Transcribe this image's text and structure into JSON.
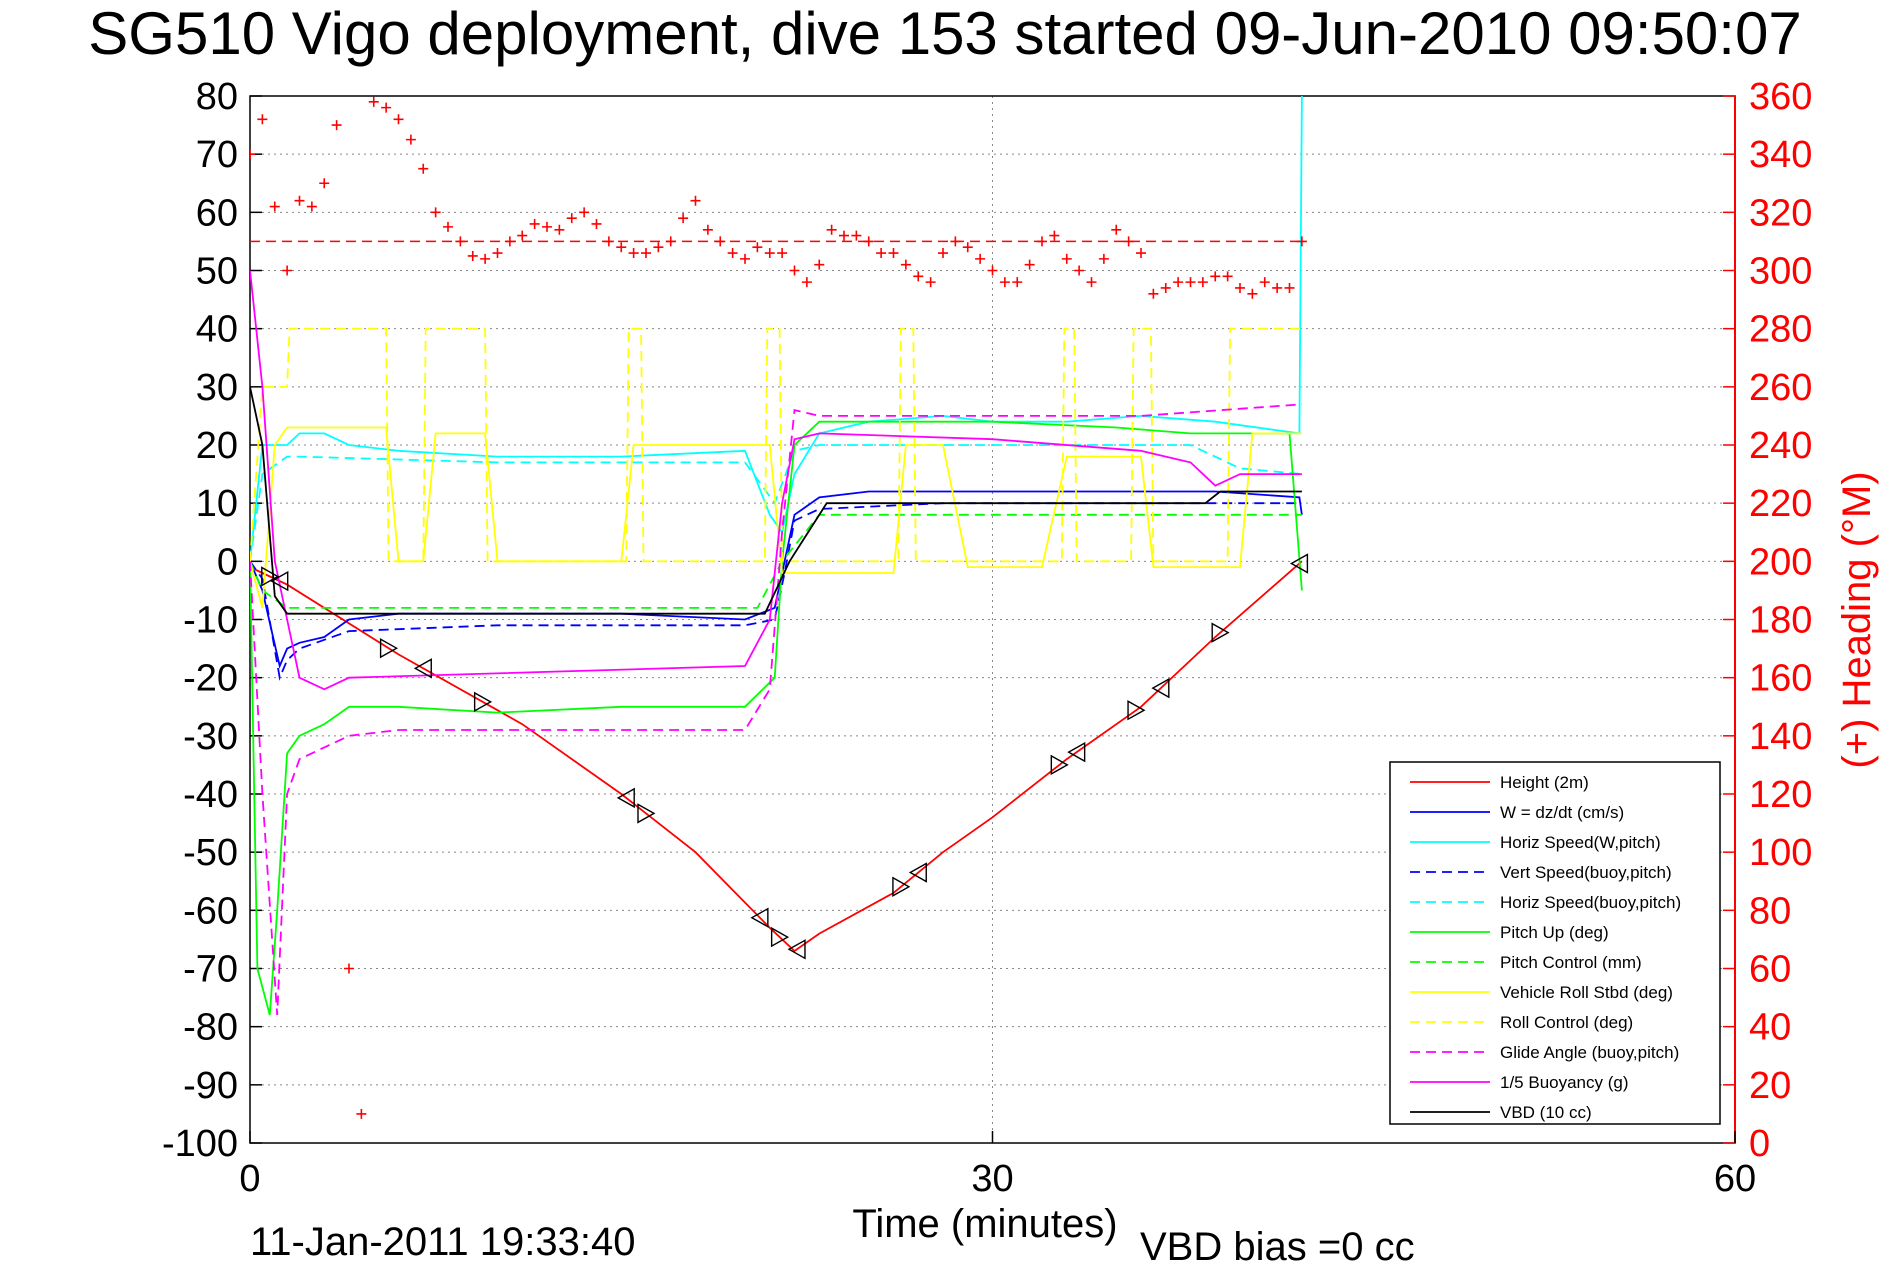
{
  "chart_data": {
    "type": "line",
    "title": "SG510 Vigo deployment, dive 153 started 09-Jun-2010 09:50:07",
    "xlabel": "Time (minutes)",
    "ylabel_right": "(+) Heading (°M)",
    "xlim": [
      0,
      60
    ],
    "ylim_left": [
      -100,
      80
    ],
    "ylim_right": [
      0,
      360
    ],
    "x_ticks": [
      "0",
      "30",
      "60"
    ],
    "y_ticks_left": [
      "80",
      "70",
      "60",
      "50",
      "40",
      "30",
      "20",
      "10",
      "0",
      "-10",
      "-20",
      "-30",
      "-40",
      "-50",
      "-60",
      "-70",
      "-80",
      "-90",
      "-100"
    ],
    "y_ticks_right": [
      "360",
      "340",
      "320",
      "300",
      "280",
      "260",
      "240",
      "220",
      "200",
      "180",
      "160",
      "140",
      "120",
      "100",
      "80",
      "60",
      "40",
      "20",
      "0"
    ],
    "grid": true,
    "legend_position": "bottom-right",
    "footer_left": "11-Jan-2011 19:33:40",
    "footer_right": "VBD bias =0 cc",
    "heading_target_deg": 310,
    "series": [
      {
        "name": "Height (2m)",
        "color": "#ff0000",
        "dash": "solid",
        "x": [
          0,
          0.5,
          1.5,
          6,
          11,
          15,
          18,
          21,
          22,
          23,
          26,
          28,
          30,
          33,
          36,
          39,
          42.5
        ],
        "y": [
          -1,
          -2,
          -4,
          -16,
          -28,
          -40,
          -50,
          -63,
          -67,
          -64,
          -57,
          -50,
          -44,
          -34,
          -25,
          -13,
          0
        ]
      },
      {
        "name": "W = dz/dt (cm/s)",
        "color": "#0000ff",
        "dash": "solid",
        "x": [
          0,
          0.5,
          1.2,
          1.5,
          2,
          3,
          4,
          6,
          10,
          15,
          20,
          21.2,
          21.6,
          22,
          23,
          25,
          28,
          30,
          33,
          36,
          39,
          42.4,
          42.5
        ],
        "y": [
          0,
          -5,
          -18,
          -15,
          -14,
          -13,
          -10,
          -9,
          -9,
          -9,
          -10,
          -8,
          0,
          8,
          11,
          12,
          12,
          12,
          12,
          12,
          12,
          11,
          8
        ]
      },
      {
        "name": "Horiz Speed(W,pitch)",
        "color": "#00ffff",
        "dash": "solid",
        "x": [
          0,
          0.5,
          1,
          1.5,
          2,
          3,
          4,
          6,
          10,
          15,
          20,
          21,
          21.5,
          22,
          23,
          25,
          28,
          30,
          33,
          36,
          39,
          42.4,
          42.5
        ],
        "y": [
          0,
          20,
          20,
          20,
          22,
          22,
          20,
          19,
          18,
          18,
          19,
          8,
          5,
          15,
          22,
          24,
          25,
          24,
          24,
          25,
          24,
          22,
          80
        ]
      },
      {
        "name": "Vert Speed(buoy,pitch)",
        "color": "#0000ff",
        "dash": "dashed",
        "x": [
          0,
          0.5,
          1.2,
          1.5,
          2,
          4,
          10,
          20,
          21.2,
          21.6,
          22,
          23,
          28,
          35,
          42,
          42.5
        ],
        "y": [
          0,
          -3,
          -20,
          -17,
          -15,
          -12,
          -11,
          -11,
          -10,
          -2,
          7,
          9,
          10,
          10,
          10,
          10
        ]
      },
      {
        "name": "Horiz Speed(buoy,pitch)",
        "color": "#00ffff",
        "dash": "dashed",
        "x": [
          0,
          0.5,
          1.5,
          2,
          10,
          20,
          21.2,
          22,
          23,
          30,
          38,
          40,
          42.5
        ],
        "y": [
          0,
          15,
          18,
          18,
          17,
          17,
          10,
          19,
          20,
          20,
          20,
          16,
          15
        ]
      },
      {
        "name": "Pitch Up (deg)",
        "color": "#00ff00",
        "dash": "solid",
        "x": [
          0,
          0.3,
          0.8,
          1.1,
          1.5,
          2,
          3,
          4,
          6,
          10,
          15,
          20,
          21.2,
          21.5,
          22,
          23,
          30,
          35,
          38,
          42,
          42.5
        ],
        "y": [
          0,
          -70,
          -78,
          -60,
          -33,
          -30,
          -28,
          -25,
          -25,
          -26,
          -25,
          -25,
          -20,
          0,
          20,
          24,
          24,
          23,
          22,
          22,
          -5
        ]
      },
      {
        "name": "Pitch Control (mm)",
        "color": "#00ff00",
        "dash": "dashed",
        "x": [
          0,
          0.5,
          1.5,
          20,
          20.5,
          21.5,
          23,
          42.5
        ],
        "y": [
          0,
          -5,
          -8,
          -8,
          -8,
          0,
          8,
          8
        ]
      },
      {
        "name": "Vehicle Roll Stbd (deg)",
        "color": "#ffff00",
        "dash": "solid",
        "x": [
          0,
          0.5,
          1,
          1.5,
          5.5,
          6,
          7,
          7.5,
          9.5,
          10,
          15,
          15.5,
          21,
          21.5,
          26,
          26.5,
          28,
          29,
          32,
          33,
          36,
          36.5,
          40,
          40.5,
          42.5
        ],
        "y": [
          0,
          -8,
          20,
          23,
          23,
          0,
          0,
          22,
          22,
          0,
          0,
          20,
          20,
          -2,
          -2,
          20,
          20,
          -1,
          -1,
          18,
          18,
          -1,
          -1,
          22,
          22
        ]
      },
      {
        "name": "Roll Control (deg)",
        "color": "#ffff00",
        "dash": "dashed",
        "x": [
          0,
          0.5,
          1.5,
          1.6,
          5.5,
          5.6,
          7,
          7.1,
          9.5,
          9.6,
          15.2,
          15.3,
          15.8,
          15.9,
          20.8,
          20.9,
          21.4,
          21.5,
          26.2,
          26.3,
          26.8,
          26.9,
          32.8,
          32.9,
          33.3,
          33.4,
          35.6,
          35.7,
          36.4,
          36.5,
          39.5,
          39.6,
          42.5
        ],
        "y": [
          0,
          30,
          30,
          40,
          40,
          0,
          0,
          40,
          40,
          0,
          0,
          40,
          40,
          0,
          0,
          40,
          40,
          0,
          0,
          40,
          40,
          0,
          0,
          40,
          40,
          0,
          0,
          40,
          40,
          0,
          0,
          40,
          40
        ]
      },
      {
        "name": "Glide Angle (buoy,pitch)",
        "color": "#ff00ff",
        "dash": "dashed",
        "x": [
          0,
          0.5,
          1.1,
          1.5,
          2,
          4,
          6,
          10,
          20,
          21,
          21.5,
          22,
          23,
          30,
          36,
          42.5
        ],
        "y": [
          0,
          -40,
          -78,
          -40,
          -34,
          -30,
          -29,
          -29,
          -29,
          -22,
          5,
          26,
          25,
          25,
          25,
          27
        ]
      },
      {
        "name": "1/5 Buoyancy (g)",
        "color": "#ff00ff",
        "dash": "solid",
        "x": [
          0,
          0.5,
          1,
          1.5,
          2,
          3,
          4,
          20,
          21,
          21.5,
          22,
          23,
          30,
          36,
          38,
          39,
          40,
          42.5
        ],
        "y": [
          50,
          30,
          0,
          -10,
          -20,
          -22,
          -20,
          -18,
          -10,
          10,
          21,
          22,
          21,
          19,
          17,
          13,
          15,
          15
        ]
      },
      {
        "name": "VBD (10 cc)",
        "color": "#000000",
        "dash": "solid",
        "x": [
          0,
          0.5,
          1,
          1.5,
          20.8,
          21.8,
          23.3,
          38.6,
          39.2,
          42.5
        ],
        "y": [
          30,
          20,
          -6,
          -9,
          -9,
          0,
          10,
          10,
          12,
          12
        ]
      },
      {
        "name": "Heading (+)",
        "color": "#ff0000",
        "dash": "markers",
        "axis": "right",
        "x": [
          0,
          0.5,
          1,
          1.5,
          2,
          2.5,
          3,
          3.5,
          4,
          4.5,
          5,
          5.5,
          6,
          6.5,
          7,
          7.5,
          8,
          8.5,
          9,
          9.5,
          10,
          10.5,
          11,
          11.5,
          12,
          12.5,
          13,
          13.5,
          14,
          14.5,
          15,
          15.5,
          16,
          16.5,
          17,
          17.5,
          18,
          18.5,
          19,
          19.5,
          20,
          20.5,
          21,
          21.5,
          22,
          22.5,
          23,
          23.5,
          24,
          24.5,
          25,
          25.5,
          26,
          26.5,
          27,
          27.5,
          28,
          28.5,
          29,
          29.5,
          30,
          30.5,
          31,
          31.5,
          32,
          32.5,
          33,
          33.5,
          34,
          34.5,
          35,
          35.5,
          36,
          36.5,
          37,
          37.5,
          38,
          38.5,
          39,
          39.5,
          40,
          40.5,
          41,
          41.5,
          42,
          42.5
        ],
        "y": [
          340,
          352,
          322,
          300,
          324,
          322,
          330,
          350,
          60,
          10,
          358,
          356,
          352,
          345,
          335,
          320,
          315,
          310,
          305,
          304,
          306,
          310,
          312,
          316,
          315,
          314,
          318,
          320,
          316,
          310,
          308,
          306,
          306,
          308,
          310,
          318,
          324,
          314,
          310,
          306,
          304,
          308,
          306,
          306,
          300,
          296,
          302,
          314,
          312,
          312,
          310,
          306,
          306,
          302,
          298,
          296,
          306,
          310,
          308,
          304,
          300,
          296,
          296,
          302,
          310,
          312,
          304,
          300,
          296,
          304,
          314,
          310,
          306,
          292,
          294,
          296,
          296,
          296,
          298,
          298,
          294,
          292,
          296,
          294,
          294,
          310
        ]
      }
    ]
  }
}
